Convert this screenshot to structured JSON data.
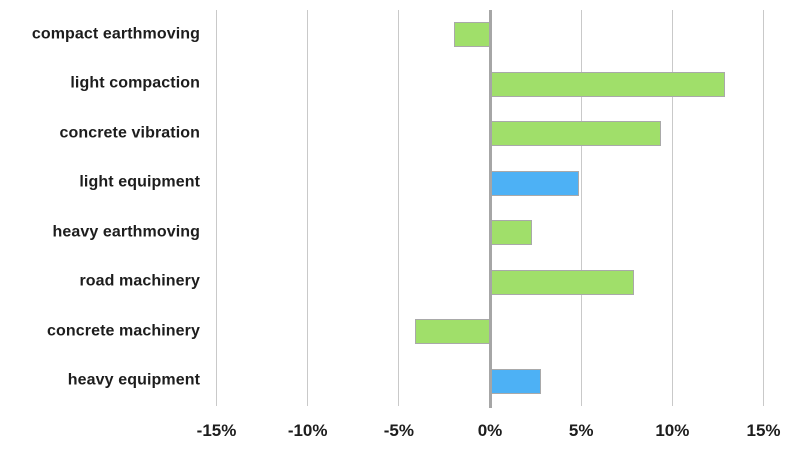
{
  "chart_data": {
    "type": "bar",
    "orientation": "horizontal",
    "title": "",
    "xlabel": "",
    "ylabel": "",
    "categories": [
      "compact earthmoving",
      "light compaction",
      "concrete vibration",
      "light equipment",
      "heavy earthmoving",
      "road machinery",
      "concrete machinery",
      "heavy equipment"
    ],
    "values": [
      -2.0,
      12.9,
      9.4,
      4.9,
      2.3,
      7.9,
      -4.1,
      2.8
    ],
    "unit": "%",
    "bar_colors": [
      "green",
      "green",
      "green",
      "blue",
      "green",
      "green",
      "green",
      "blue"
    ],
    "colors": {
      "green": "#a0df6a",
      "blue": "#4db1f5",
      "bar_border": "#a9a9a9",
      "gridline": "#c9c9c9",
      "zero_axis": "#a6a6a6",
      "text": "#1d1d1d"
    },
    "x_ticks": [
      "-15%",
      "-10%",
      "-5%",
      "0%",
      "5%",
      "10%",
      "15%"
    ],
    "x_tick_values": [
      -15,
      -10,
      -5,
      0,
      5,
      10,
      15
    ],
    "xlim": [
      -15,
      15
    ],
    "grid": true,
    "legend": false
  }
}
